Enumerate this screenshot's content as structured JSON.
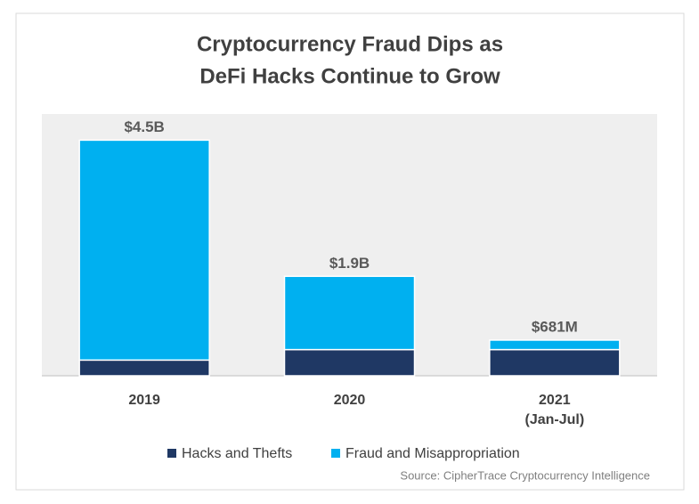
{
  "chart_data": {
    "type": "stacked-bar",
    "title": [
      "Cryptocurrency Fraud Dips as",
      "DeFi Hacks Continue to Grow"
    ],
    "categories": [
      [
        "2019"
      ],
      [
        "2020"
      ],
      [
        "2021",
        "(Jan-Jul)"
      ]
    ],
    "series": [
      {
        "name": "Hacks and Thefts",
        "color": "#1f3864",
        "values": [
          300000000,
          500000000,
          500000000
        ]
      },
      {
        "name": "Fraud and Misappropriation",
        "color": "#00b0f0",
        "values": [
          4200000000,
          1400000000,
          181000000
        ]
      }
    ],
    "totals": [
      4500000000,
      1900000000,
      681000000
    ],
    "total_labels": [
      "$4.5B",
      "$1.9B",
      "$681M"
    ],
    "ylim": [
      0,
      5000000000
    ],
    "source": "Source: CipherTrace Cryptocurrency Intelligence"
  }
}
